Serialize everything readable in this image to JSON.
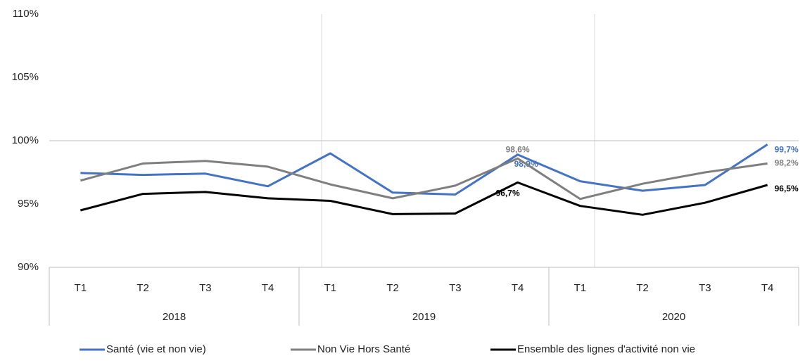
{
  "chart_data": {
    "type": "line",
    "categories": [
      "T1",
      "T2",
      "T3",
      "T4",
      "T1",
      "T2",
      "T3",
      "T4",
      "T1",
      "T2",
      "T3",
      "T4"
    ],
    "groups": [
      "2018",
      "2019",
      "2020"
    ],
    "series": [
      {
        "name": "Santé (vie et non vie)",
        "color": "#4472c4",
        "values": [
          97.45,
          97.3,
          97.4,
          96.4,
          99.0,
          95.9,
          95.75,
          98.9,
          96.8,
          96.05,
          96.5,
          99.7
        ],
        "value_labels": [
          null,
          null,
          null,
          null,
          null,
          null,
          null,
          "98,9%",
          null,
          null,
          null,
          "99,7%"
        ]
      },
      {
        "name": "Non Vie Hors Santé",
        "color": "#7f7f7f",
        "values": [
          96.85,
          98.2,
          98.4,
          97.95,
          96.55,
          95.45,
          96.45,
          98.6,
          95.4,
          96.6,
          97.5,
          98.2
        ],
        "value_labels": [
          null,
          null,
          null,
          null,
          null,
          null,
          null,
          "98,6%",
          null,
          null,
          null,
          "98,2%"
        ]
      },
      {
        "name": "Ensemble des lignes d'activité non vie",
        "color": "#000000",
        "values": [
          94.5,
          95.8,
          95.95,
          95.45,
          95.25,
          94.2,
          94.25,
          96.7,
          94.85,
          94.15,
          95.1,
          96.5
        ],
        "value_labels": [
          null,
          null,
          null,
          null,
          null,
          null,
          null,
          "96,7%",
          null,
          null,
          null,
          "96,5%"
        ]
      }
    ],
    "ylim": [
      90,
      110
    ],
    "yticks": [
      {
        "value": 90,
        "label": "90%"
      },
      {
        "value": 95,
        "label": "95%"
      },
      {
        "value": 100,
        "label": "100%"
      },
      {
        "value": 105,
        "label": "105%"
      },
      {
        "value": 110,
        "label": "110%"
      }
    ],
    "reference_line": 100,
    "legend": "bottom"
  }
}
